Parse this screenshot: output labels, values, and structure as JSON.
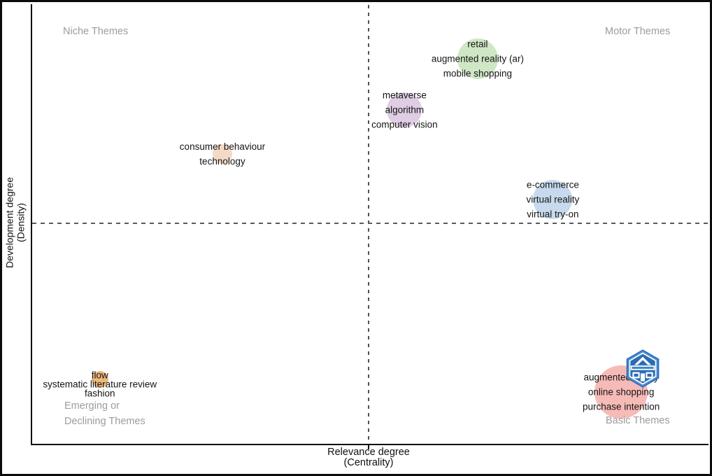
{
  "chart_data": {
    "type": "scatter",
    "variant": "bibliometric-thematic-map",
    "title": "",
    "xlabel": {
      "line1": "Relevance degree",
      "line2": "(Centrality)"
    },
    "ylabel": {
      "line1": "Development degree",
      "line2": "(Density)"
    },
    "quadrant_labels": {
      "top_left": "Niche Themes",
      "top_right": "Motor Themes",
      "bottom_left_line1": "Emerging or",
      "bottom_left_line2": "Declining Themes",
      "bottom_right": "Basic Themes"
    },
    "axis_style": {
      "dividers": {
        "centrality_frac": 0.497,
        "density_frac": 0.502,
        "style": "dashed",
        "color": "#555555"
      },
      "grid": false,
      "ticks": "none (unitless strategic diagram)"
    },
    "clusters": [
      {
        "id": "retail-ar-mobile",
        "terms": [
          "retail",
          "augmented reality (ar)",
          "mobile shopping"
        ],
        "quadrant": "Motor Themes",
        "centrality_frac": 0.659,
        "density_frac": 0.876,
        "radius_px": 29,
        "color": "#cbe5c0"
      },
      {
        "id": "metaverse",
        "terms": [
          "metaverse",
          "algorithm",
          "computer vision"
        ],
        "quadrant": "Motor Themes",
        "centrality_frac": 0.551,
        "density_frac": 0.76,
        "radius_px": 25,
        "color": "#dbc9e1"
      },
      {
        "id": "consumer-behaviour",
        "terms": [
          "consumer behaviour",
          "technology"
        ],
        "quadrant": "Niche Themes",
        "centrality_frac": 0.282,
        "density_frac": 0.659,
        "radius_px": 14,
        "color": "#f3d7c1"
      },
      {
        "id": "ecommerce",
        "terms": [
          "e-commerce",
          "virtual reality",
          "virtual try-on"
        ],
        "quadrant": "Motor Themes",
        "centrality_frac": 0.77,
        "density_frac": 0.556,
        "radius_px": 28,
        "color": "#c2d7eb"
      },
      {
        "id": "flow",
        "terms": [
          "flow",
          "systematic literature review",
          "fashion"
        ],
        "quadrant": "Emerging or Declining Themes",
        "centrality_frac": 0.101,
        "density_frac": 0.147,
        "radius_px": 12,
        "color": "#ecb273"
      },
      {
        "id": "augmented-reality",
        "terms": [
          "augmented reality",
          "online shopping",
          "purchase intention"
        ],
        "quadrant": "Basic Themes",
        "centrality_frac": 0.871,
        "density_frac": 0.118,
        "radius_px": 38,
        "color": "#f5b5b1"
      }
    ],
    "watermark": {
      "description": "blue hexagonal badge logo overlapping bottom-right bubble",
      "primary_color": "#2c6cb6"
    }
  }
}
